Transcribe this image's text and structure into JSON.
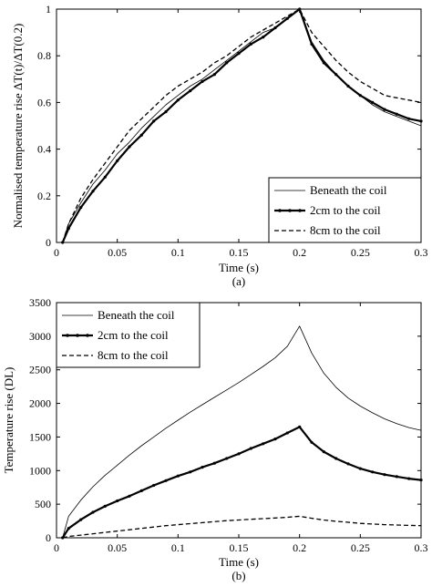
{
  "figure": {
    "colors": {
      "foreground": "#000000",
      "background": "#ffffff"
    }
  },
  "chart_data": [
    {
      "id": "a",
      "type": "line",
      "caption": "(a)",
      "xlabel": "Time (s)",
      "ylabel": "Normalised temperature rise ΔT(t)/ΔT(0.2)",
      "xlim": [
        0,
        0.3
      ],
      "ylim": [
        0,
        1
      ],
      "xticks": [
        "0",
        "0.05",
        "0.1",
        "0.15",
        "0.2",
        "0.25",
        "0.3"
      ],
      "yticks": [
        "0",
        "0.2",
        "0.4",
        "0.6",
        "0.8",
        "1"
      ],
      "grid": false,
      "legend_position": "bottom-right",
      "x": [
        0.005,
        0.01,
        0.02,
        0.03,
        0.04,
        0.05,
        0.06,
        0.07,
        0.08,
        0.09,
        0.1,
        0.11,
        0.12,
        0.13,
        0.14,
        0.15,
        0.16,
        0.17,
        0.18,
        0.19,
        0.2,
        0.21,
        0.22,
        0.23,
        0.24,
        0.25,
        0.26,
        0.27,
        0.28,
        0.29,
        0.3
      ],
      "series": [
        {
          "name": "Beneath the coil",
          "style": "thin-solid",
          "values": [
            0.0,
            0.08,
            0.17,
            0.25,
            0.31,
            0.38,
            0.43,
            0.49,
            0.54,
            0.59,
            0.63,
            0.67,
            0.7,
            0.74,
            0.78,
            0.82,
            0.86,
            0.9,
            0.92,
            0.96,
            1.0,
            0.86,
            0.78,
            0.72,
            0.67,
            0.63,
            0.59,
            0.56,
            0.54,
            0.52,
            0.5
          ]
        },
        {
          "name": "2cm to the coil",
          "style": "thick-dotted-marker",
          "values": [
            0.0,
            0.06,
            0.15,
            0.22,
            0.28,
            0.35,
            0.41,
            0.46,
            0.52,
            0.56,
            0.61,
            0.65,
            0.69,
            0.72,
            0.77,
            0.81,
            0.85,
            0.88,
            0.92,
            0.96,
            1.0,
            0.85,
            0.77,
            0.72,
            0.67,
            0.63,
            0.6,
            0.57,
            0.55,
            0.53,
            0.52
          ]
        },
        {
          "name": "8cm to the coil",
          "style": "dashed",
          "values": [
            0.0,
            0.08,
            0.19,
            0.27,
            0.34,
            0.41,
            0.48,
            0.53,
            0.58,
            0.63,
            0.67,
            0.7,
            0.73,
            0.77,
            0.8,
            0.84,
            0.88,
            0.91,
            0.94,
            0.97,
            1.0,
            0.9,
            0.84,
            0.78,
            0.73,
            0.69,
            0.66,
            0.63,
            0.62,
            0.61,
            0.6
          ]
        }
      ]
    },
    {
      "id": "b",
      "type": "line",
      "caption": "(b)",
      "xlabel": "Time (s)",
      "ylabel": "Temperature rise (DL)",
      "xlim": [
        0,
        0.3
      ],
      "ylim": [
        0,
        3500
      ],
      "xticks": [
        "0",
        "0.05",
        "0.1",
        "0.15",
        "0.2",
        "0.25",
        "0.3"
      ],
      "yticks": [
        "0",
        "500",
        "1000",
        "1500",
        "2000",
        "2500",
        "3000",
        "3500"
      ],
      "grid": false,
      "legend_position": "top-left",
      "x": [
        0.005,
        0.01,
        0.02,
        0.03,
        0.04,
        0.05,
        0.06,
        0.07,
        0.08,
        0.09,
        0.1,
        0.11,
        0.12,
        0.13,
        0.14,
        0.15,
        0.16,
        0.17,
        0.18,
        0.19,
        0.2,
        0.21,
        0.22,
        0.23,
        0.24,
        0.25,
        0.26,
        0.27,
        0.28,
        0.29,
        0.3
      ],
      "series": [
        {
          "name": "Beneath the coil",
          "style": "thin-solid",
          "values": [
            0,
            320,
            560,
            760,
            930,
            1080,
            1230,
            1370,
            1500,
            1630,
            1750,
            1870,
            1980,
            2090,
            2200,
            2310,
            2430,
            2550,
            2680,
            2850,
            3150,
            2750,
            2450,
            2240,
            2080,
            1960,
            1860,
            1770,
            1700,
            1640,
            1600
          ]
        },
        {
          "name": "2cm to the coil",
          "style": "thick-dotted-marker",
          "values": [
            0,
            140,
            270,
            380,
            470,
            550,
            620,
            700,
            780,
            850,
            920,
            980,
            1050,
            1110,
            1180,
            1250,
            1330,
            1400,
            1470,
            1560,
            1650,
            1420,
            1280,
            1180,
            1100,
            1030,
            980,
            940,
            910,
            880,
            860
          ]
        },
        {
          "name": "8cm to the coil",
          "style": "dashed",
          "values": [
            0,
            20,
            40,
            60,
            80,
            100,
            120,
            140,
            160,
            180,
            195,
            210,
            225,
            240,
            255,
            265,
            275,
            285,
            295,
            305,
            320,
            290,
            265,
            245,
            230,
            215,
            205,
            195,
            190,
            185,
            180
          ]
        }
      ]
    }
  ]
}
